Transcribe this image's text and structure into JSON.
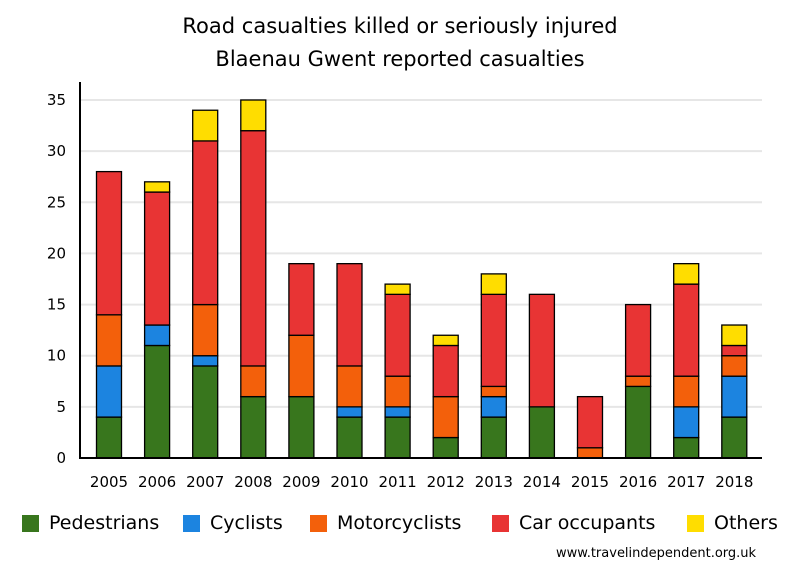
{
  "chart_data": {
    "type": "bar",
    "stacked": true,
    "title": "Road casualties killed or seriously injured",
    "subtitle": "Blaenau Gwent reported casualties",
    "xlabel": "",
    "ylabel": "",
    "ylim": [
      0,
      35
    ],
    "yticks": [
      0,
      5,
      10,
      15,
      20,
      25,
      30,
      35
    ],
    "grid": true,
    "legend_position": "bottom",
    "categories": [
      "2005",
      "2006",
      "2007",
      "2008",
      "2009",
      "2010",
      "2011",
      "2012",
      "2013",
      "2014",
      "2015",
      "2016",
      "2017",
      "2018"
    ],
    "series": [
      {
        "name": "Pedestrians",
        "color": "#38761d",
        "values": [
          4,
          11,
          9,
          6,
          6,
          4,
          4,
          2,
          4,
          5,
          0,
          7,
          2,
          4
        ]
      },
      {
        "name": "Cyclists",
        "color": "#1c84e0",
        "values": [
          5,
          2,
          1,
          0,
          0,
          1,
          1,
          0,
          2,
          0,
          0,
          0,
          3,
          4
        ]
      },
      {
        "name": "Motorcyclists",
        "color": "#f3600b",
        "values": [
          5,
          0,
          5,
          3,
          6,
          4,
          3,
          4,
          1,
          0,
          1,
          1,
          3,
          2
        ]
      },
      {
        "name": "Car occupants",
        "color": "#e83434",
        "values": [
          14,
          13,
          16,
          23,
          7,
          10,
          8,
          5,
          9,
          11,
          5,
          7,
          9,
          1
        ]
      },
      {
        "name": "Others",
        "color": "#ffdd00",
        "values": [
          0,
          1,
          3,
          3,
          0,
          0,
          1,
          1,
          2,
          0,
          0,
          0,
          2,
          2
        ]
      }
    ]
  },
  "credit": "www.travelindependent.org.uk"
}
